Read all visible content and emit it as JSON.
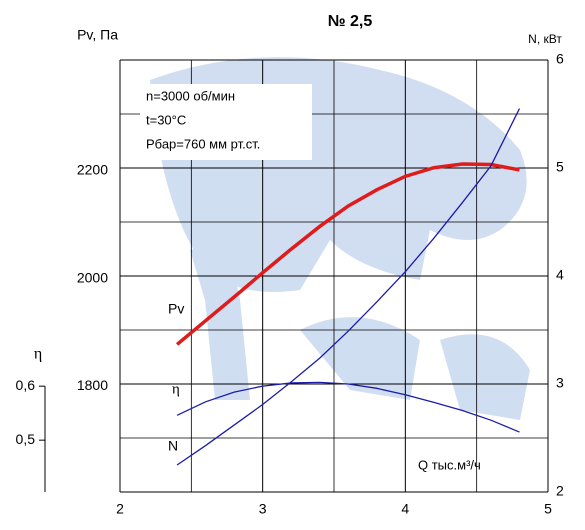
{
  "chart_data": {
    "type": "line",
    "title": "№ 2,5",
    "y_label": "Pv, Па",
    "y2_label": "N, кВт",
    "y3_label": "η",
    "x_label": "Q тыс.м³/ч",
    "notes": [
      "n=3000 об/мин",
      "t=30°С",
      "Pбар=760 мм рт.ст."
    ],
    "x": [
      2.4,
      2.6,
      2.8,
      3.0,
      3.2,
      3.4,
      3.6,
      3.8,
      4.0,
      4.2,
      4.4,
      4.6,
      4.8
    ],
    "series": [
      {
        "name": "Pv",
        "color": "#e01b1b",
        "axis": "y",
        "values": [
          1878,
          1922,
          1966,
          2011,
          2055,
          2097,
          2135,
          2165,
          2190,
          2206,
          2213,
          2212,
          2202
        ]
      },
      {
        "name": "η",
        "color": "#1c1ca8",
        "axis": "y3",
        "values": [
          0.546,
          0.571,
          0.589,
          0.6,
          0.606,
          0.607,
          0.604,
          0.596,
          0.584,
          0.57,
          0.555,
          0.537,
          0.515
        ]
      },
      {
        "name": "N",
        "color": "#1c1ca8",
        "axis": "y2",
        "values": [
          2.25,
          2.43,
          2.62,
          2.81,
          3.02,
          3.24,
          3.49,
          3.76,
          4.04,
          4.35,
          4.68,
          5.02,
          5.55
        ]
      }
    ],
    "xlim": [
      2,
      5
    ],
    "xticks": [
      2,
      3,
      4,
      5
    ],
    "ylim": [
      1604,
      2406
    ],
    "yticks": [
      1800,
      2000,
      2200
    ],
    "y2lim": [
      2,
      6
    ],
    "y2ticks": [
      2,
      3,
      4,
      5,
      6
    ],
    "y3lim": [
      0.404,
      1.204
    ],
    "y3ticks": [
      {
        "value": 0.5,
        "label": "0,5"
      },
      {
        "value": 0.6,
        "label": "0,6"
      }
    ],
    "grid": true
  }
}
